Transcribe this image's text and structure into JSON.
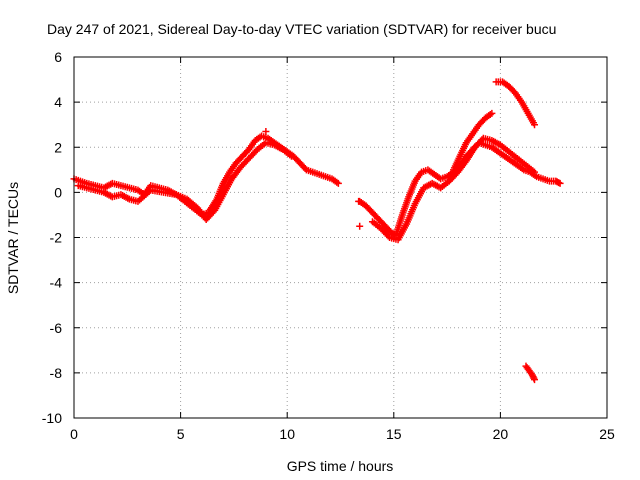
{
  "chart_data": {
    "type": "scatter",
    "title": "Day 247 of 2021, Sidereal Day-to-day VTEC variation (SDTVAR) for receiver bucu",
    "xlabel": "GPS time / hours",
    "ylabel": "SDTVAR / TECUs",
    "xlim": [
      0,
      25
    ],
    "ylim": [
      -10,
      6
    ],
    "xticks": [
      0,
      5,
      10,
      15,
      20,
      25
    ],
    "yticks": [
      -10,
      -8,
      -6,
      -4,
      -2,
      0,
      2,
      4,
      6
    ],
    "grid": true,
    "marker": "+",
    "color": "#ff0000",
    "series": [
      {
        "name": "SDTVAR",
        "trace_a": {
          "x": [
            0.0,
            0.3,
            0.6,
            1.0,
            1.4,
            1.8,
            2.2,
            2.6,
            3.0,
            3.3,
            3.6,
            4.0,
            4.4,
            4.8,
            5.2,
            5.6,
            6.0,
            6.3,
            6.7,
            7.0,
            7.3,
            7.6,
            7.9,
            8.2,
            8.5,
            8.8,
            9.1,
            9.4,
            9.7,
            10.0,
            10.3,
            10.6,
            10.9,
            11.2,
            11.5,
            11.8,
            12.1,
            12.4
          ],
          "y": [
            0.6,
            0.5,
            0.4,
            0.3,
            0.2,
            0.4,
            0.3,
            0.2,
            0.1,
            -0.1,
            0.3,
            0.2,
            0.1,
            -0.1,
            -0.4,
            -0.7,
            -1.0,
            -0.9,
            -0.3,
            0.4,
            0.9,
            1.3,
            1.6,
            1.9,
            2.3,
            2.5,
            2.4,
            2.2,
            2.0,
            1.8,
            1.6,
            1.3,
            1.0,
            0.9,
            0.8,
            0.7,
            0.6,
            0.4
          ]
        },
        "trace_b": {
          "x": [
            0.2,
            0.6,
            1.0,
            1.4,
            1.8,
            2.2,
            2.6,
            3.0,
            3.6,
            4.2,
            4.8,
            5.3,
            5.8,
            6.2,
            6.6,
            7.0,
            7.4,
            7.8,
            8.2,
            8.6,
            9.0,
            9.4,
            9.8,
            10.2
          ],
          "y": [
            0.3,
            0.2,
            0.1,
            0.0,
            -0.2,
            -0.1,
            -0.3,
            -0.4,
            0.1,
            0.0,
            -0.1,
            -0.3,
            -0.7,
            -1.2,
            -0.8,
            -0.1,
            0.6,
            1.1,
            1.5,
            1.9,
            2.2,
            2.1,
            1.9,
            1.6
          ]
        },
        "trace_c": {
          "x": [
            13.4,
            13.7,
            14.0,
            14.3,
            14.6,
            14.9,
            15.1,
            15.4,
            15.7,
            16.0,
            16.3,
            16.6,
            16.9,
            17.2,
            17.5,
            17.8,
            18.1,
            18.4,
            18.7,
            19.0,
            19.3,
            19.6,
            19.9,
            20.2,
            20.5,
            20.8,
            21.1,
            21.4,
            21.7,
            22.0,
            22.3,
            22.6,
            22.8
          ],
          "y": [
            -0.4,
            -0.6,
            -0.9,
            -1.2,
            -1.5,
            -1.8,
            -1.9,
            -1.0,
            -0.2,
            0.5,
            0.9,
            1.0,
            0.8,
            0.6,
            0.7,
            0.9,
            1.2,
            1.6,
            1.9,
            2.2,
            2.1,
            2.0,
            1.8,
            1.6,
            1.4,
            1.2,
            1.0,
            0.9,
            0.7,
            0.6,
            0.5,
            0.5,
            0.4
          ]
        },
        "trace_d": {
          "x": [
            14.0,
            14.4,
            14.8,
            15.2,
            15.6,
            16.0,
            16.4,
            16.8,
            17.2,
            17.6,
            18.0,
            18.4,
            18.8,
            19.2,
            19.6,
            20.0,
            20.4,
            20.8,
            21.2,
            21.6
          ],
          "y": [
            -1.3,
            -1.6,
            -2.0,
            -2.1,
            -1.4,
            -0.5,
            0.2,
            0.4,
            0.2,
            0.5,
            0.9,
            1.4,
            2.0,
            2.4,
            2.3,
            2.1,
            1.8,
            1.5,
            1.2,
            0.9
          ]
        },
        "trace_e": {
          "x": [
            17.8,
            18.1,
            18.4,
            18.7,
            19.0,
            19.3,
            19.6
          ],
          "y": [
            1.0,
            1.6,
            2.2,
            2.6,
            3.0,
            3.3,
            3.5
          ]
        },
        "trace_f": {
          "x": [
            19.8,
            20.1,
            20.4,
            20.7,
            21.0,
            21.3,
            21.6
          ],
          "y": [
            4.9,
            4.9,
            4.7,
            4.4,
            4.0,
            3.5,
            3.0
          ]
        },
        "trace_g": {
          "x": [
            21.2,
            21.35,
            21.5,
            21.6
          ],
          "y": [
            -7.7,
            -7.9,
            -8.1,
            -8.3
          ]
        },
        "outliers": {
          "x": [
            13.4,
            13.35,
            0.3,
            9.0
          ],
          "y": [
            -1.5,
            -0.4,
            0.3,
            2.7
          ]
        }
      }
    ]
  }
}
